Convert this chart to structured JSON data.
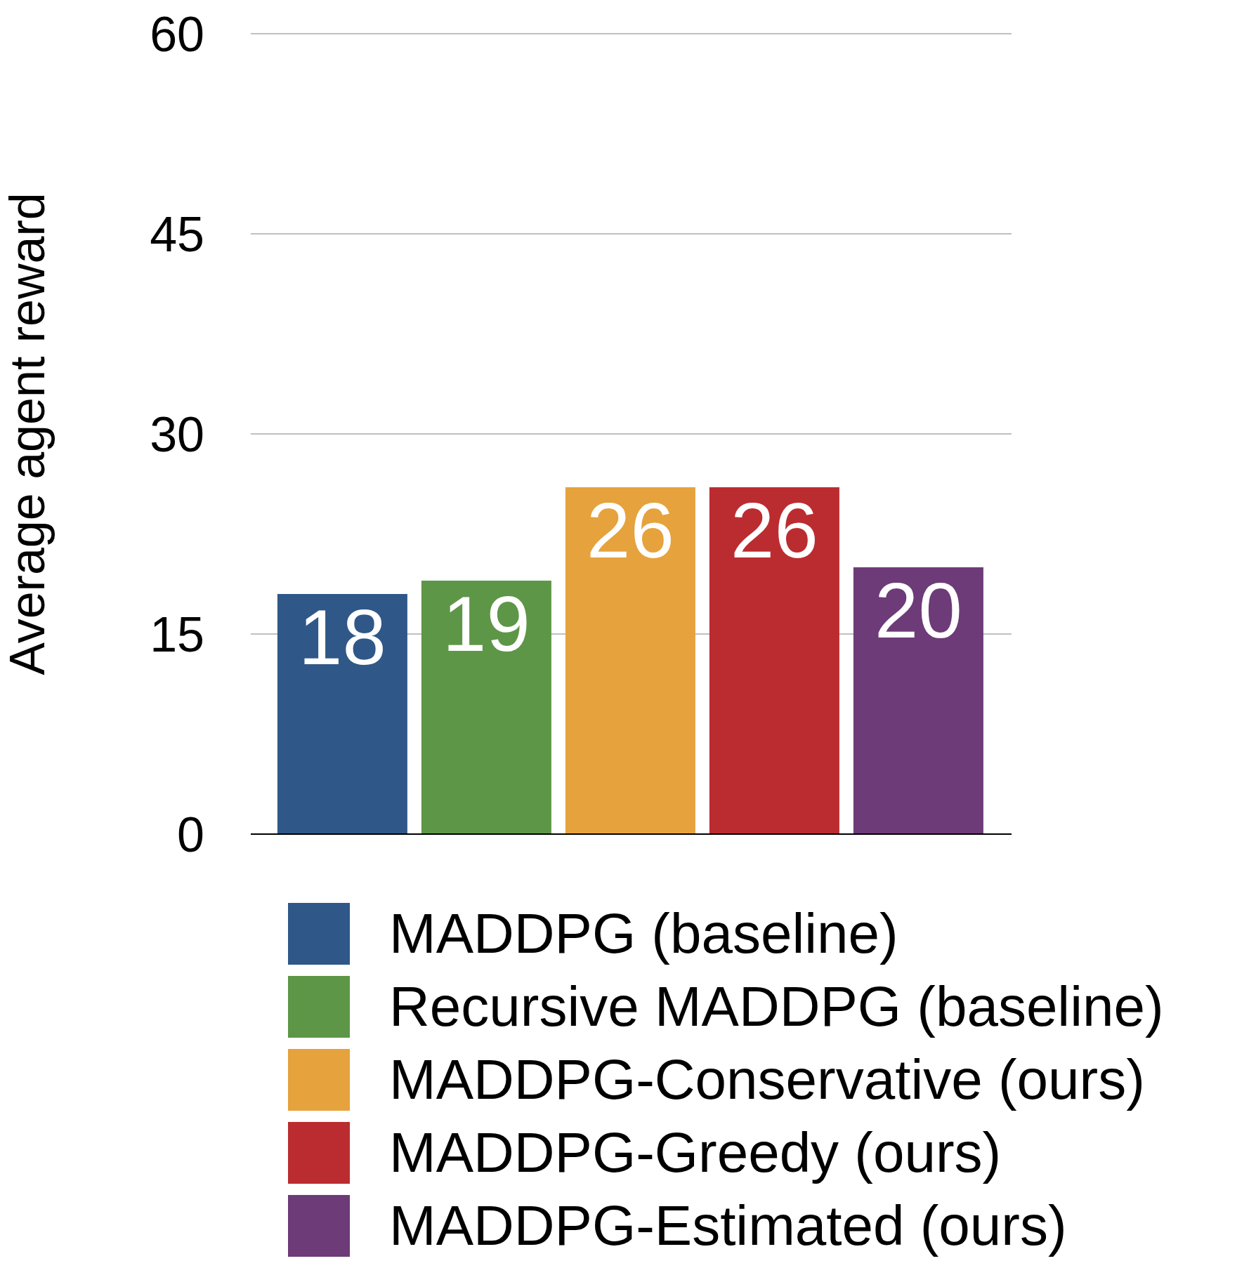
{
  "chart_data": {
    "type": "bar",
    "ylabel": "Average agent reward",
    "categories": [
      null
    ],
    "series": [
      {
        "name": "MADDPG (baseline)",
        "color": "#2f5889",
        "values": [
          18
        ]
      },
      {
        "name": "Recursive MADDPG (baseline)",
        "color": "#5e9648",
        "values": [
          19
        ]
      },
      {
        "name": "MADDPG-Conservative (ours)",
        "color": "#e6a23d",
        "values": [
          26
        ]
      },
      {
        "name": "MADDPG-Greedy (ours)",
        "color": "#bb2c30",
        "values": [
          26
        ]
      },
      {
        "name": "MADDPG-Estimated (ours)",
        "color": "#6d3b78",
        "values": [
          20
        ]
      }
    ],
    "ylim": [
      0,
      60
    ],
    "yticks": [
      0,
      15,
      30,
      45,
      60
    ],
    "grid": "y",
    "legend": "bottom",
    "data_labels": true
  }
}
